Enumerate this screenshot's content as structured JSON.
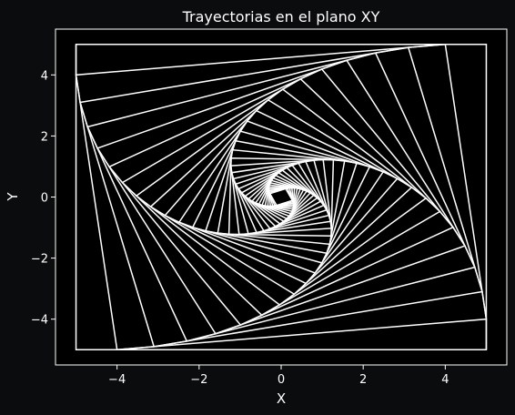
{
  "chart_data": {
    "type": "line",
    "title": "Trayectorias en el plano XY",
    "xlabel": "X",
    "ylabel": "Y",
    "xlim": [
      -5.5,
      5.5
    ],
    "ylim": [
      -5.5,
      5.5
    ],
    "xticks": [
      -4,
      -2,
      0,
      2,
      4
    ],
    "yticks": [
      -4,
      -2,
      0,
      2,
      4
    ],
    "xtick_labels": [
      "−4",
      "−2",
      "0",
      "2",
      "4"
    ],
    "ytick_labels": [
      "−4",
      "−2",
      "0",
      "2",
      "4"
    ],
    "grid": false,
    "series_color": "#ffffff",
    "background_color": "#0b0c0e",
    "spiral": {
      "initial_corners": [
        [
          5,
          5
        ],
        [
          -5,
          5
        ],
        [
          -5,
          -5
        ],
        [
          5,
          -5
        ]
      ],
      "step_fraction": 0.1,
      "iterations": 32
    }
  }
}
